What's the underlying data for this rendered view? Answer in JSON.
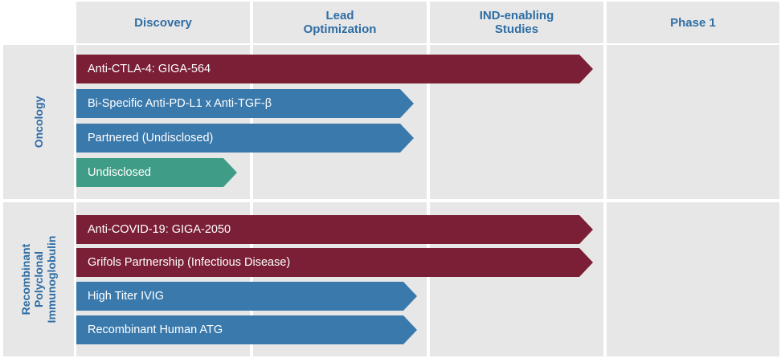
{
  "headers": {
    "discovery": "Discovery",
    "lead_optimization": "Lead\nOptimization",
    "ind_enabling": "IND-enabling\nStudies",
    "phase1": "Phase 1"
  },
  "groups": {
    "oncology": "Oncology",
    "recombinant": "Recombinant\nPolyclonal\nImmunoglobulin"
  },
  "programs": {
    "anti_ctla4": {
      "label": "Anti-CTLA-4: GIGA-564",
      "stage": "IND-enabling Studies"
    },
    "bispecific": {
      "label": "Bi-Specific Anti-PD-L1 x Anti-TGF-β",
      "stage": "Lead Optimization"
    },
    "partnered": {
      "label": "Partnered (Undisclosed)",
      "stage": "Lead Optimization"
    },
    "undisclosed": {
      "label": "Undisclosed",
      "stage": "Discovery"
    },
    "anti_covid": {
      "label": "Anti-COVID-19: GIGA-2050",
      "stage": "IND-enabling Studies"
    },
    "grifols": {
      "label": "Grifols Partnership (Infectious Disease)",
      "stage": "IND-enabling Studies"
    },
    "ivig": {
      "label": "High Titer IVIG",
      "stage": "Lead Optimization"
    },
    "atg": {
      "label": "Recombinant Human ATG",
      "stage": "Lead Optimization"
    }
  },
  "colors": {
    "header_text": "#2e6da4",
    "red": "#7a1f35",
    "blue": "#3a79ac",
    "teal": "#3f9c87",
    "grid": "#e7e7e7"
  }
}
